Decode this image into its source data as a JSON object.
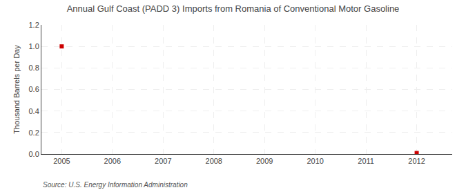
{
  "chart_data": {
    "type": "scatter",
    "title": "Annual Gulf Coast (PADD 3) Imports from Romania of Conventional Motor Gasoline",
    "ylabel": "Thousand Barrels per Day",
    "annotations": [
      "Source: U.S. Energy Information Administration"
    ],
    "x": [
      2005,
      2012
    ],
    "values": [
      1.0,
      0.01
    ],
    "color": "#cc0000",
    "marker": "square",
    "xlim": [
      2004.6,
      2012.7
    ],
    "xticks": [
      2005,
      2006,
      2007,
      2008,
      2009,
      2010,
      2011,
      2012
    ],
    "ylim": [
      0.0,
      1.2
    ],
    "yticks": [
      {
        "value": 0.0,
        "label": "0.0"
      },
      0.2,
      0.4,
      0.6,
      0.8,
      {
        "value": 1.0,
        "label": "1.0"
      },
      1.2
    ],
    "grid": true
  }
}
